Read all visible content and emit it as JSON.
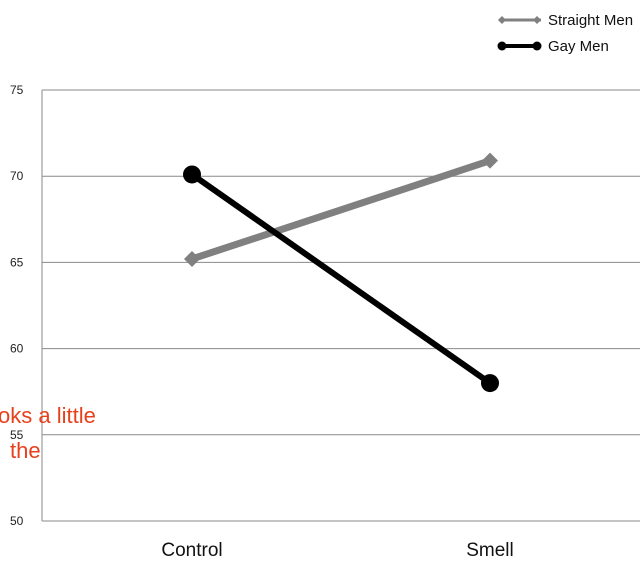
{
  "chart_data": {
    "type": "line",
    "categories": [
      "Control",
      "Smell"
    ],
    "series": [
      {
        "name": "Straight Men",
        "values": [
          65.2,
          70.9
        ],
        "color": "#808080",
        "marker": "diamond"
      },
      {
        "name": "Gay Men",
        "values": [
          70.1,
          58.0
        ],
        "color": "#000000",
        "marker": "circle"
      }
    ],
    "ylim": [
      50,
      75
    ],
    "yticks": [
      50,
      55,
      60,
      65,
      70,
      75
    ],
    "grid": true,
    "legend_position": "top-right"
  },
  "overlay_text": {
    "line1": "oks a little",
    "line2": "the",
    "color": "#e8401c"
  }
}
